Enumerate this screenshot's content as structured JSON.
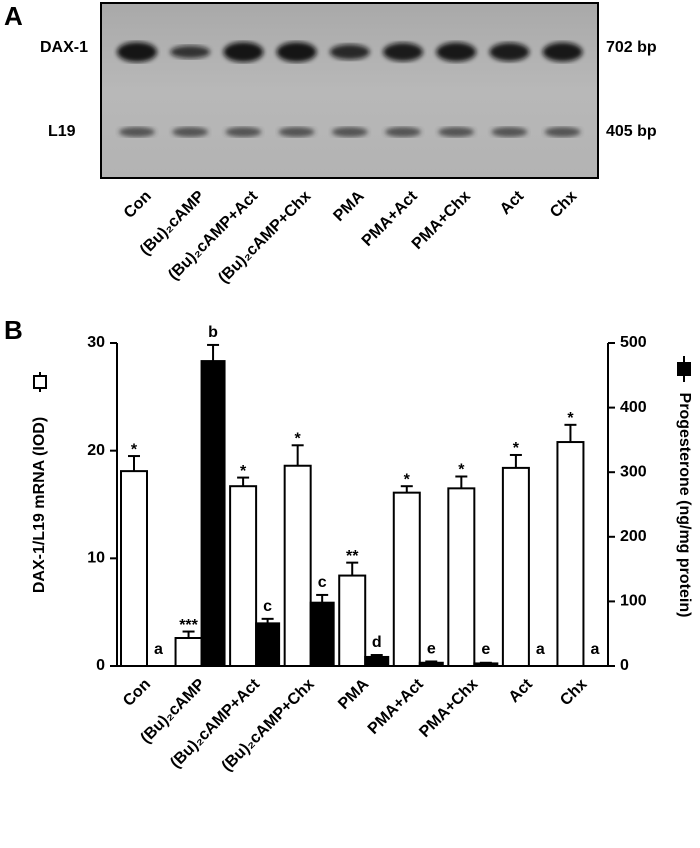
{
  "panel_a": {
    "label": "A",
    "bands": [
      "DAX-1",
      "L19"
    ],
    "sizes": [
      "702 bp",
      "405 bp"
    ],
    "lanes": [
      "Con",
      "(Bu)₂cAMP",
      "(Bu)₂cAMP+Act",
      "(Bu)₂cAMP+Chx",
      "PMA",
      "PMA+Act",
      "PMA+Chx",
      "Act",
      "Chx"
    ]
  },
  "chart_data": {
    "type": "bar",
    "panel_label": "B",
    "categories": [
      "Con",
      "(Bu)₂cAMP",
      "(Bu)₂cAMP+Act",
      "(Bu)₂cAMP+Chx",
      "PMA",
      "PMA+Act",
      "PMA+Chx",
      "Act",
      "Chx"
    ],
    "ylabel": "DAX-1/L19 mRNA (IOD)",
    "y2label": "Progesterone (ng/mg protein)",
    "ylim": [
      0,
      30
    ],
    "yticks": [
      0,
      10,
      20,
      30
    ],
    "y2lim": [
      0,
      500
    ],
    "y2ticks": [
      0,
      100,
      200,
      300,
      400,
      500
    ],
    "series": [
      {
        "color": "#ffffff",
        "values": [
          18.1,
          2.6,
          16.7,
          18.6,
          8.4,
          16.1,
          16.5,
          18.4,
          20.8
        ],
        "errors": [
          1.4,
          0.6,
          0.8,
          1.9,
          1.2,
          0.6,
          1.1,
          1.2,
          1.6
        ],
        "annotations": [
          "*",
          "***",
          "*",
          "*",
          "**",
          "*",
          "*",
          "*",
          "*"
        ]
      },
      {
        "color": "#000000",
        "axis": "y2",
        "values": [
          0,
          472,
          66,
          98,
          14,
          5,
          4,
          0,
          0
        ],
        "errors": [
          0,
          25,
          7,
          12,
          3,
          2,
          1,
          0,
          0
        ],
        "annotations": [
          "a",
          "b",
          "c",
          "c",
          "d",
          "e",
          "e",
          "a",
          "a"
        ]
      }
    ]
  }
}
